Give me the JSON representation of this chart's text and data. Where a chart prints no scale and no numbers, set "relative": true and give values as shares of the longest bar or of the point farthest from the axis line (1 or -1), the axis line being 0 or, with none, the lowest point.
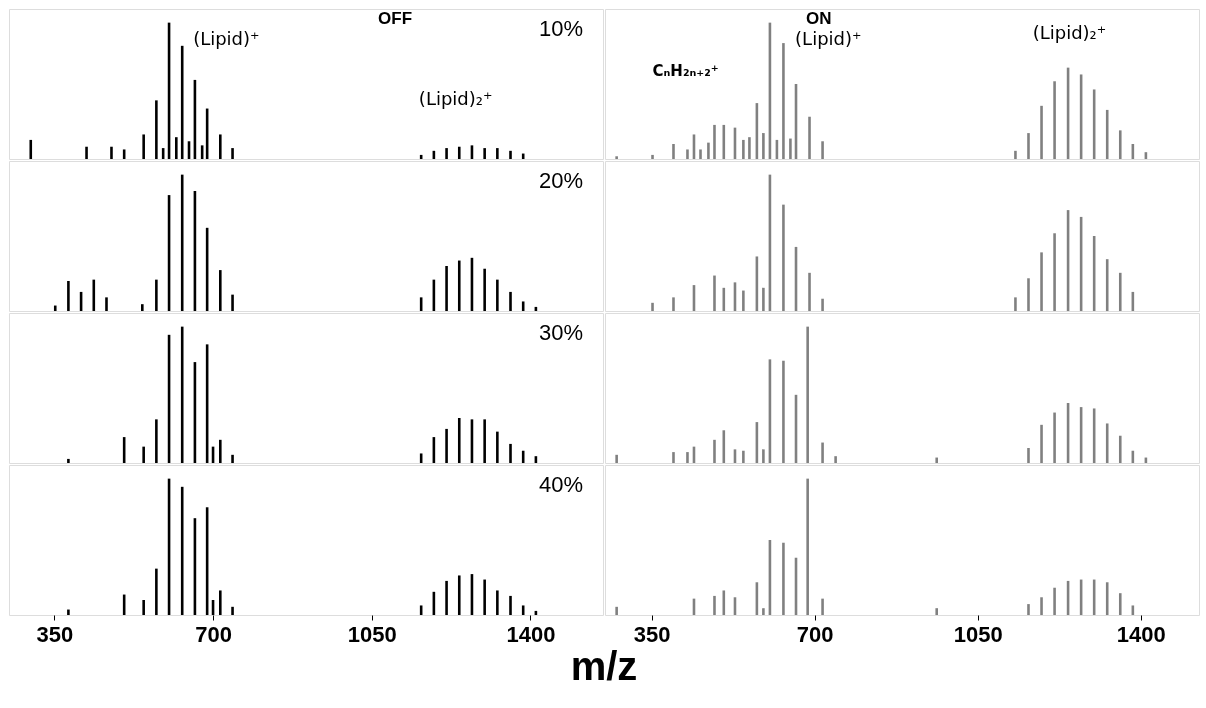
{
  "chart_data": [
    {
      "type": "bar",
      "title": "OFF",
      "relative": true,
      "color": "#000000",
      "xlim": [
        250,
        1560
      ],
      "tick_labels": false,
      "annotations": [
        "10%",
        "(Lipid)⁺",
        "(Lipid)₂⁺"
      ],
      "x": [
        298,
        421,
        476,
        504,
        547,
        575,
        590,
        603,
        619,
        632,
        647,
        660,
        676,
        687,
        716,
        743,
        1159,
        1187,
        1215,
        1243,
        1271,
        1299,
        1327,
        1356,
        1384
      ],
      "values": [
        0.14,
        0.09,
        0.09,
        0.07,
        0.18,
        0.43,
        0.08,
        1,
        0.16,
        0.83,
        0.13,
        0.58,
        0.1,
        0.37,
        0.18,
        0.08,
        0.03,
        0.06,
        0.08,
        0.09,
        0.1,
        0.08,
        0.08,
        0.06,
        0.04
      ]
    },
    {
      "type": "bar",
      "title": "ON",
      "relative": true,
      "color": "#808080",
      "xlim": [
        250,
        1525
      ],
      "tick_labels": false,
      "annotations": [
        "(Lipid)⁺",
        "(Lipid)₂⁺",
        "CₙH₂ₙ₊₂⁺"
      ],
      "x": [
        275,
        352,
        397,
        427,
        441,
        455,
        472,
        485,
        505,
        529,
        547,
        560,
        576,
        590,
        604,
        619,
        633,
        648,
        660,
        689,
        717,
        1131,
        1159,
        1187,
        1215,
        1244,
        1272,
        1300,
        1328,
        1356,
        1383,
        1411
      ],
      "values": [
        0.02,
        0.03,
        0.11,
        0.07,
        0.18,
        0.07,
        0.12,
        0.25,
        0.25,
        0.23,
        0.14,
        0.16,
        0.41,
        0.19,
        1,
        0.14,
        0.85,
        0.15,
        0.55,
        0.31,
        0.13,
        0.06,
        0.19,
        0.39,
        0.57,
        0.67,
        0.62,
        0.51,
        0.36,
        0.21,
        0.11,
        0.05
      ]
    },
    {
      "type": "bar",
      "relative": true,
      "color": "#000000",
      "xlim": [
        250,
        1560
      ],
      "tick_labels": false,
      "annotations": [
        "20%"
      ],
      "x": [
        352,
        381,
        409,
        437,
        465,
        544,
        575,
        603,
        632,
        660,
        687,
        716,
        743,
        1159,
        1187,
        1215,
        1243,
        1271,
        1299,
        1327,
        1356,
        1384,
        1412
      ],
      "values": [
        0.04,
        0.22,
        0.14,
        0.23,
        0.1,
        0.05,
        0.23,
        0.85,
        1,
        0.88,
        0.61,
        0.3,
        0.12,
        0.1,
        0.23,
        0.33,
        0.37,
        0.39,
        0.31,
        0.23,
        0.14,
        0.07,
        0.03
      ]
    },
    {
      "type": "bar",
      "relative": true,
      "color": "#808080",
      "xlim": [
        250,
        1525
      ],
      "tick_labels": false,
      "x": [
        352,
        397,
        441,
        485,
        505,
        529,
        547,
        576,
        590,
        604,
        633,
        660,
        689,
        717,
        1131,
        1159,
        1187,
        1215,
        1244,
        1272,
        1300,
        1328,
        1356,
        1383
      ],
      "values": [
        0.06,
        0.1,
        0.19,
        0.26,
        0.17,
        0.21,
        0.15,
        0.4,
        0.17,
        1,
        0.78,
        0.47,
        0.28,
        0.09,
        0.1,
        0.24,
        0.43,
        0.57,
        0.74,
        0.69,
        0.55,
        0.38,
        0.28,
        0.14
      ]
    },
    {
      "type": "bar",
      "relative": true,
      "color": "#000000",
      "xlim": [
        250,
        1560
      ],
      "tick_labels": false,
      "annotations": [
        "30%"
      ],
      "x": [
        381,
        504,
        547,
        575,
        603,
        632,
        660,
        687,
        700,
        716,
        743,
        1159,
        1187,
        1215,
        1243,
        1271,
        1299,
        1327,
        1356,
        1384,
        1412
      ],
      "values": [
        0.03,
        0.19,
        0.12,
        0.32,
        0.94,
        1,
        0.74,
        0.87,
        0.12,
        0.17,
        0.06,
        0.07,
        0.19,
        0.25,
        0.33,
        0.32,
        0.32,
        0.23,
        0.14,
        0.09,
        0.05
      ]
    },
    {
      "type": "bar",
      "relative": true,
      "color": "#808080",
      "xlim": [
        250,
        1525
      ],
      "tick_labels": false,
      "x": [
        275,
        397,
        427,
        441,
        485,
        505,
        529,
        547,
        576,
        590,
        604,
        633,
        660,
        685,
        717,
        745,
        962,
        1159,
        1187,
        1215,
        1244,
        1272,
        1300,
        1328,
        1356,
        1383,
        1411
      ],
      "values": [
        0.06,
        0.08,
        0.08,
        0.12,
        0.17,
        0.24,
        0.1,
        0.09,
        0.3,
        0.1,
        0.76,
        0.75,
        0.5,
        1,
        0.15,
        0.05,
        0.04,
        0.11,
        0.28,
        0.37,
        0.44,
        0.41,
        0.4,
        0.29,
        0.2,
        0.09,
        0.04
      ]
    },
    {
      "type": "bar",
      "relative": true,
      "color": "#000000",
      "xlim": [
        250,
        1560
      ],
      "xticks": [
        350,
        700,
        1050,
        1400
      ],
      "tick_labels": "x",
      "xlabel": "m/z",
      "annotations": [
        "40%"
      ],
      "x": [
        381,
        504,
        547,
        575,
        603,
        632,
        660,
        687,
        700,
        716,
        743,
        1159,
        1187,
        1215,
        1243,
        1271,
        1299,
        1327,
        1356,
        1384,
        1412
      ],
      "values": [
        0.04,
        0.15,
        0.11,
        0.34,
        1,
        0.94,
        0.71,
        0.79,
        0.11,
        0.18,
        0.06,
        0.07,
        0.17,
        0.25,
        0.29,
        0.3,
        0.26,
        0.18,
        0.14,
        0.07,
        0.03
      ]
    },
    {
      "type": "bar",
      "relative": true,
      "color": "#808080",
      "xlim": [
        250,
        1525
      ],
      "xticks": [
        350,
        700,
        1050,
        1400
      ],
      "tick_labels": "x",
      "x": [
        275,
        441,
        485,
        505,
        529,
        576,
        590,
        604,
        633,
        660,
        685,
        717,
        962,
        1159,
        1187,
        1215,
        1244,
        1272,
        1300,
        1328,
        1356,
        1383
      ],
      "values": [
        0.06,
        0.12,
        0.14,
        0.18,
        0.13,
        0.24,
        0.05,
        0.55,
        0.53,
        0.42,
        1,
        0.12,
        0.05,
        0.08,
        0.13,
        0.2,
        0.25,
        0.26,
        0.26,
        0.24,
        0.16,
        0.07
      ]
    }
  ]
}
